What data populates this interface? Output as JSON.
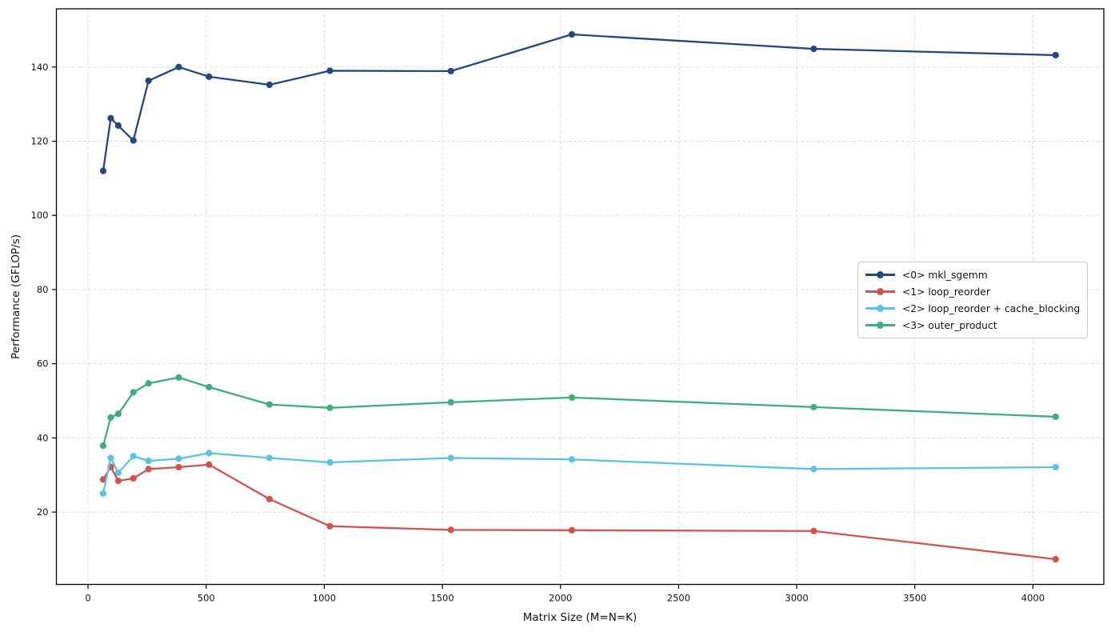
{
  "chart_data": {
    "type": "line",
    "title": "",
    "xlabel": "Matrix Size (M=N=K)",
    "ylabel": "Performance (GFLOP/s)",
    "x": [
      64,
      96,
      128,
      192,
      256,
      384,
      512,
      768,
      1024,
      1536,
      2048,
      3072,
      4096
    ],
    "series": [
      {
        "name": "<0> mkl_sgemm",
        "color": "#24477e",
        "values": [
          112.0,
          126.2,
          124.2,
          120.2,
          136.3,
          140.0,
          137.4,
          135.2,
          139.0,
          138.9,
          148.8,
          144.9,
          143.2
        ]
      },
      {
        "name": "<1> loop_reorder",
        "color": "#d0534e",
        "values": [
          28.8,
          32.2,
          28.4,
          29.1,
          31.6,
          32.1,
          32.8,
          23.5,
          16.2,
          15.2,
          15.1,
          14.9,
          7.3
        ]
      },
      {
        "name": "<2> loop_reorder + cache_blocking",
        "color": "#5bc3df",
        "values": [
          25.0,
          34.6,
          30.6,
          35.1,
          33.8,
          34.4,
          35.9,
          34.6,
          33.4,
          34.6,
          34.2,
          31.6,
          32.1
        ]
      },
      {
        "name": "<3> outer_product",
        "color": "#3fae7b",
        "values": [
          37.9,
          45.5,
          46.5,
          52.3,
          54.7,
          56.3,
          53.7,
          49.0,
          48.1,
          49.6,
          50.9,
          48.3,
          45.7
        ]
      }
    ],
    "xticks": [
      0,
      500,
      1000,
      1500,
      2000,
      2500,
      3000,
      3500,
      4000
    ],
    "yticks": [
      20,
      40,
      60,
      80,
      100,
      120,
      140
    ],
    "xlim": [
      -134,
      4300
    ],
    "ylim": [
      0.5,
      155.7
    ],
    "grid": true,
    "grid_style": "dashed",
    "grid_color": "#d9d9d9",
    "spine_color": "#000000",
    "background": "#ffffff",
    "legend_position": "center right"
  }
}
